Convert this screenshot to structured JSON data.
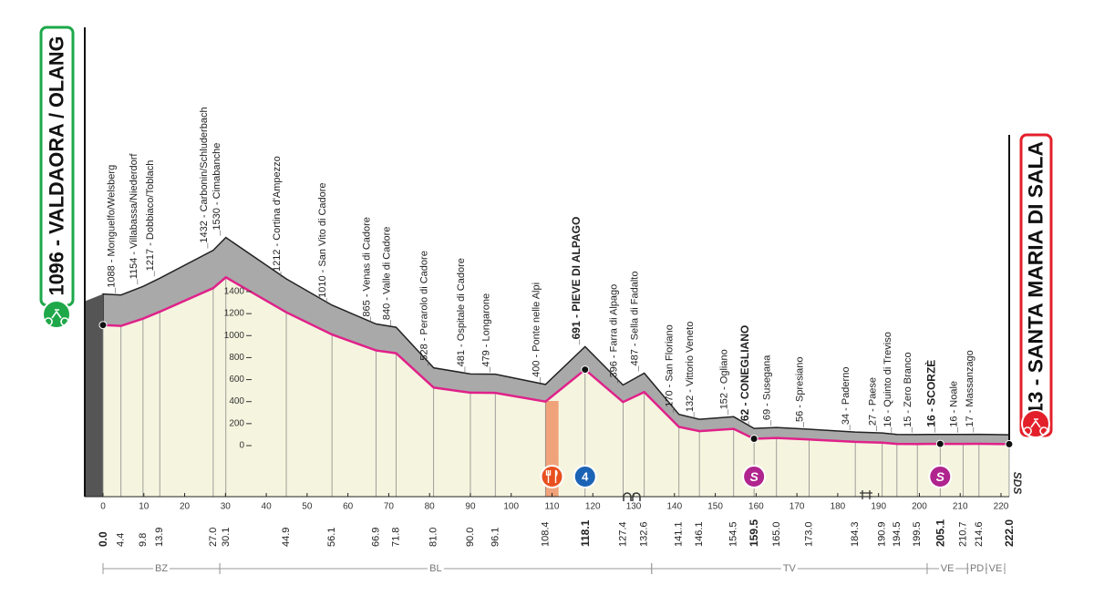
{
  "start": {
    "label": "1096 - VALDAORA / OLANG",
    "km": "0.0"
  },
  "finish": {
    "label": "13 - SANTA MARIA DI SALA",
    "km": "222.0"
  },
  "waypoints": [
    {
      "label": "1088 - Monguelfo/Welsberg",
      "km": "4.4"
    },
    {
      "label": "1154 - Villabassa/Niederdorf",
      "km": "9.8"
    },
    {
      "label": "1217 - Dobbiaco/Toblach",
      "km": "13.9"
    },
    {
      "label": "1432 - Carbonin/Schluderbach",
      "km": "27.0"
    },
    {
      "label": "1530 - Cimabanche",
      "km": "30.1"
    },
    {
      "label": "1212 - Cortina d'Ampezzo",
      "km": "44.9"
    },
    {
      "label": "1010 - San Vito di Cadore",
      "km": "56.1"
    },
    {
      "label": "865 - Venas di Cadore",
      "km": "66.9"
    },
    {
      "label": "840 - Valle di Cadore",
      "km": "71.8"
    },
    {
      "label": "528 - Perarolo di Cadore",
      "km": "81.0"
    },
    {
      "label": "481 - Ospitale di Cadore",
      "km": "90.0"
    },
    {
      "label": "479 - Longarone",
      "km": "96.1"
    },
    {
      "label": "400 - Ponte nelle Alpi",
      "km": "108.4"
    },
    {
      "label": "691 - PIEVE DI ALPAGO",
      "km": "118.1",
      "bold": true,
      "marker": "kom"
    },
    {
      "label": "396 - Farra di Alpago",
      "km": "127.4"
    },
    {
      "label": "487 - Sella di Fadalto",
      "km": "132.6"
    },
    {
      "label": "170 - San Floriano",
      "km": "141.1"
    },
    {
      "label": "132 - Vittorio Veneto",
      "km": "146.1"
    },
    {
      "label": "152 - Ogliano",
      "km": "154.5"
    },
    {
      "label": "62 - CONEGLIANO",
      "km": "159.5",
      "bold": true,
      "marker": "sprint"
    },
    {
      "label": "69 - Susegana",
      "km": "165.0"
    },
    {
      "label": "56 - Spresiano",
      "km": "173.0"
    },
    {
      "label": "34 - Paderno",
      "km": "184.3"
    },
    {
      "label": "27 - Paese",
      "km": "190.9"
    },
    {
      "label": "16 - Quinto di Treviso",
      "km": "194.5"
    },
    {
      "label": "15 - Zero Branco",
      "km": "199.5"
    },
    {
      "label": "16 - SCORZÈ",
      "km": "205.1",
      "bold": true,
      "marker": "sprint"
    },
    {
      "label": "16 - Noale",
      "km": "210.7"
    },
    {
      "label": "17 - Massanzago",
      "km": "214.6"
    }
  ],
  "xticks": [
    0,
    10,
    20,
    30,
    40,
    50,
    60,
    70,
    80,
    90,
    100,
    110,
    120,
    130,
    140,
    150,
    160,
    170,
    180,
    190,
    200,
    210,
    220
  ],
  "xlim": [
    0,
    222
  ],
  "yticks": [
    1400,
    1200,
    1000,
    800,
    600,
    400,
    200,
    0
  ],
  "ylim": [
    0,
    1400
  ],
  "regions": [
    {
      "label": "BZ",
      "from": 0,
      "to": 28.6
    },
    {
      "label": "BL",
      "from": 28.6,
      "to": 134.4
    },
    {
      "label": "TV",
      "from": 134.4,
      "to": 201.9
    },
    {
      "label": "VE",
      "from": 201.9,
      "to": 211.8
    },
    {
      "label": "PD",
      "from": 211.8,
      "to": 216.4
    },
    {
      "label": "VE",
      "from": 216.4,
      "to": 220.9
    }
  ],
  "feed_zone": [
    108.4,
    111.6
  ],
  "kom_category": "4",
  "sprint_symbol": "S",
  "logo": "SDS"
}
